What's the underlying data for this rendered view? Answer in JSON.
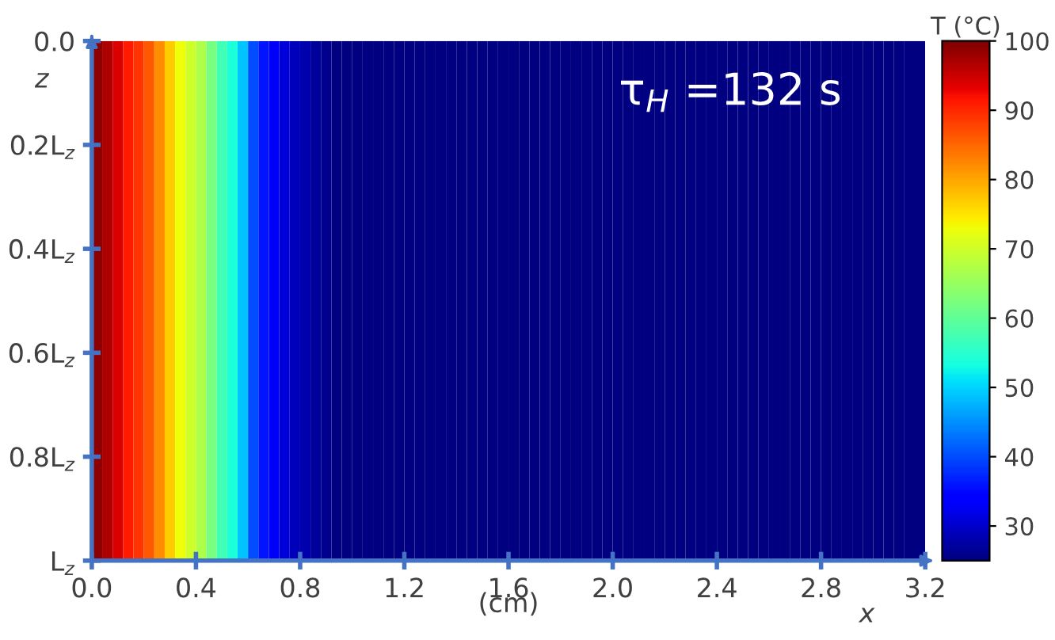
{
  "chart_data": {
    "type": "heatmap",
    "x": [
      0.02,
      0.06,
      0.1,
      0.14,
      0.18,
      0.22,
      0.26,
      0.3,
      0.34,
      0.38,
      0.42,
      0.46,
      0.5,
      0.54,
      0.58,
      0.62,
      0.66,
      0.7,
      0.74,
      0.78,
      0.82,
      0.86,
      0.9,
      0.94,
      0.98,
      1.02,
      1.06,
      1.1,
      1.14,
      1.18,
      1.22,
      1.26,
      1.3,
      1.34,
      1.38,
      1.42,
      1.46,
      1.5,
      1.54,
      1.58,
      1.62,
      1.66,
      1.7,
      1.74,
      1.78,
      1.82,
      1.86,
      1.9,
      1.94,
      1.98,
      2.02,
      2.06,
      2.1,
      2.14,
      2.18,
      2.22,
      2.26,
      2.3,
      2.34,
      2.38,
      2.42,
      2.46,
      2.5,
      2.54,
      2.58,
      2.62,
      2.66,
      2.7,
      2.74,
      2.78,
      2.82,
      2.86,
      2.9,
      2.94,
      2.98,
      3.02,
      3.06,
      3.1,
      3.14,
      3.18
    ],
    "cells": [
      [
        99,
        97,
        94,
        91,
        89,
        86,
        82,
        77,
        73,
        70,
        67,
        62,
        57,
        54,
        49,
        40,
        36,
        33,
        31,
        29,
        28,
        27,
        26,
        25,
        25,
        25,
        25,
        25,
        25,
        25,
        25,
        25,
        25,
        25,
        25,
        25,
        25,
        25,
        25,
        25,
        25,
        25,
        25,
        25,
        25,
        25,
        25,
        25,
        25,
        25,
        25,
        25,
        25,
        25,
        25,
        25,
        25,
        25,
        25,
        25,
        25,
        25,
        25,
        25,
        25,
        25,
        25,
        25,
        25,
        25,
        25,
        25,
        25,
        25,
        25,
        25,
        25,
        25,
        25,
        25
      ]
    ],
    "xlim": [
      0,
      3.2
    ],
    "xticks": [
      {
        "value": 0,
        "label": "0.0"
      },
      {
        "value": 0.4,
        "label": "0.4"
      },
      {
        "value": 0.8,
        "label": "0.8"
      },
      {
        "value": 1.2,
        "label": "1.2"
      },
      {
        "value": 1.6,
        "label": "1.6"
      },
      {
        "value": 2,
        "label": "2.0"
      },
      {
        "value": 2.4,
        "label": "2.4"
      },
      {
        "value": 2.8,
        "label": "2.8"
      },
      {
        "value": 3.2,
        "label": "3.2"
      }
    ],
    "xlabel": "x",
    "ylabel": "z",
    "clabel": "T (°C)",
    "clim": [
      25,
      100
    ],
    "cticks": [
      30,
      40,
      50,
      60,
      70,
      80,
      90,
      100
    ],
    "ylim": [
      1,
      0
    ],
    "yticks": [
      {
        "value": 0,
        "label": "0.0"
      },
      {
        "value": 0.2,
        "label": "0.2L$_{z}$"
      },
      {
        "value": 0.4,
        "label": "0.4L$_{z}$"
      },
      {
        "value": 0.6,
        "label": "0.6L$_{z}$"
      },
      {
        "value": 0.8,
        "label": "0.8L$_{z}$"
      },
      {
        "value": 1,
        "label": "L$_{z}$"
      }
    ],
    "annotations": [
      "τ$_{H}$ =132 s",
      "(cm)"
    ],
    "grid": false
  }
}
